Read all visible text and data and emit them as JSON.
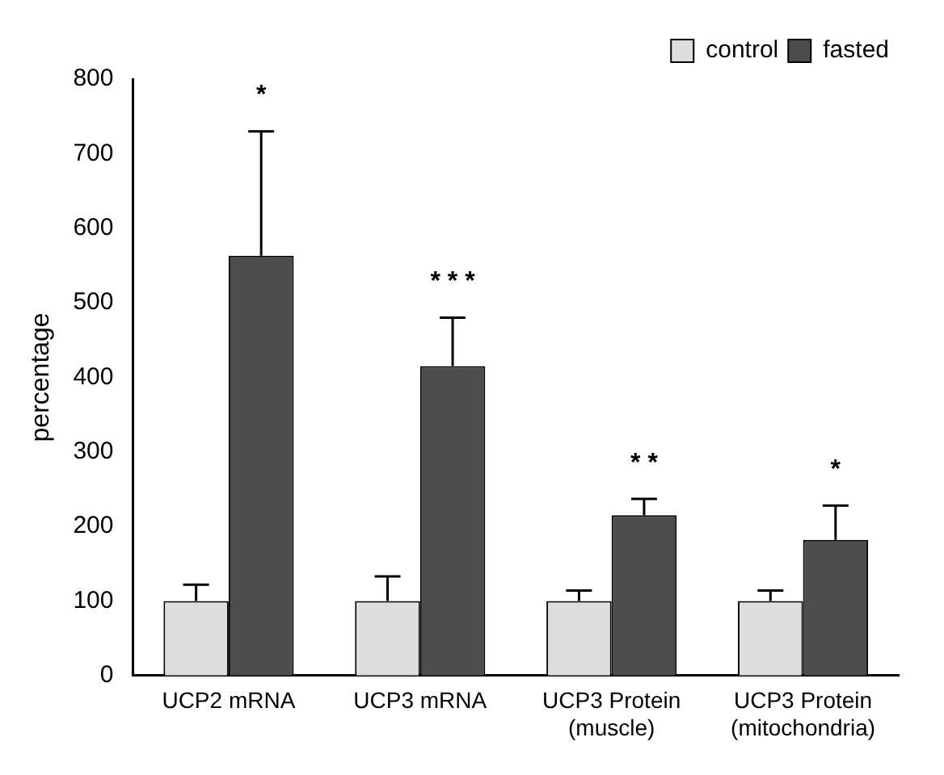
{
  "chart_data": {
    "type": "bar",
    "ylabel": "percentage",
    "categories": [
      "UCP2 mRNA",
      "UCP3 mRNA",
      "UCP3 Protein\n(muscle)",
      "UCP3 Protein\n(mitochondria)"
    ],
    "series": [
      {
        "name": "control",
        "color": "#dddddd",
        "values": [
          100,
          100,
          100,
          100
        ],
        "errors": [
          [
            100,
            122
          ],
          [
            100,
            133
          ],
          [
            100,
            114
          ],
          [
            100,
            114
          ]
        ]
      },
      {
        "name": "fasted",
        "color": "#4d4d4d",
        "values": [
          563,
          415,
          215,
          182
        ],
        "errors": [
          [
            563,
            730
          ],
          [
            415,
            480
          ],
          [
            215,
            237
          ],
          [
            182,
            228
          ]
        ]
      }
    ],
    "ylim": [
      0,
      800
    ],
    "yticks": [
      0,
      100,
      200,
      300,
      400,
      500,
      600,
      700,
      800
    ],
    "grid": false,
    "legend": "top right",
    "annotations": [
      "*",
      "* * *",
      "* *",
      "*"
    ]
  }
}
